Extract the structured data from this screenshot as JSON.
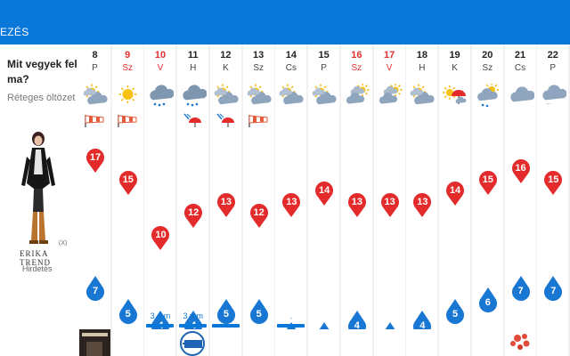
{
  "header": {
    "nav_label": "EZÉS",
    "color": "#0a78d8"
  },
  "sidebar": {
    "title": "Mit vegyek fel ma?",
    "subtitle": "Réteges öltözet",
    "ad_brand": "ERIKA TREND",
    "ad_close": "(X)",
    "ad_label": "Hirdetés"
  },
  "colors": {
    "max_pin": "#e32b2b",
    "min_drop": "#1877d2",
    "weekend_text": "#e03030"
  },
  "temp_scale": {
    "max": 17,
    "min": 3
  },
  "days": [
    {
      "day": "8",
      "dow": "P",
      "weekend": false,
      "icon": "partly-sunny-icon",
      "extra": "wind-sock-icon",
      "max": 17,
      "min": 7,
      "precip": "",
      "bar": false
    },
    {
      "day": "9",
      "dow": "Sz",
      "weekend": true,
      "icon": "sun-icon",
      "extra": "wind-sock-icon",
      "max": 15,
      "min": 5,
      "precip": "",
      "bar": false
    },
    {
      "day": "10",
      "dow": "V",
      "weekend": true,
      "icon": "rain-cloud-icon",
      "extra": "",
      "max": 10,
      "min": 4,
      "precip": "3 mm",
      "bar": true
    },
    {
      "day": "11",
      "dow": "H",
      "weekend": false,
      "icon": "rain-cloud-icon",
      "extra": "umbrella-wind-icon",
      "max": 12,
      "min": 4,
      "precip": "3 mm",
      "bar": true
    },
    {
      "day": "12",
      "dow": "K",
      "weekend": false,
      "icon": "partly-sunny-icon",
      "extra": "umbrella-wind-icon",
      "max": 13,
      "min": 5,
      "precip": ".",
      "bar": true
    },
    {
      "day": "13",
      "dow": "Sz",
      "weekend": false,
      "icon": "partly-sunny-icon",
      "extra": "wind-sock-icon",
      "max": 12,
      "min": 5,
      "precip": "",
      "bar": false
    },
    {
      "day": "14",
      "dow": "Cs",
      "weekend": false,
      "icon": "partly-sunny-icon",
      "extra": "",
      "max": 13,
      "min": 3,
      "precip": ".",
      "bar": true
    },
    {
      "day": "15",
      "dow": "P",
      "weekend": false,
      "icon": "partly-sunny-icon",
      "extra": "",
      "max": 14,
      "min": 3,
      "precip": "",
      "bar": false
    },
    {
      "day": "16",
      "dow": "Sz",
      "weekend": true,
      "icon": "clouds-sun-icon",
      "extra": "",
      "max": 13,
      "min": 4,
      "precip": "",
      "bar": false
    },
    {
      "day": "17",
      "dow": "V",
      "weekend": true,
      "icon": "clouds-sun-icon",
      "extra": "",
      "max": 13,
      "min": 3,
      "precip": "",
      "bar": false
    },
    {
      "day": "18",
      "dow": "H",
      "weekend": false,
      "icon": "partly-sunny-icon",
      "extra": "",
      "max": 13,
      "min": 4,
      "precip": "",
      "bar": false
    },
    {
      "day": "19",
      "dow": "K",
      "weekend": false,
      "icon": "umbrella-icon",
      "extra": "",
      "max": 14,
      "min": 5,
      "precip": "",
      "bar": false
    },
    {
      "day": "20",
      "dow": "Sz",
      "weekend": false,
      "icon": "sun-rain-icon",
      "extra": "",
      "max": 15,
      "min": 6,
      "precip": "",
      "bar": false
    },
    {
      "day": "21",
      "dow": "Cs",
      "weekend": false,
      "icon": "cloud-icon",
      "extra": "",
      "max": 16,
      "min": 7,
      "precip": "",
      "bar": false
    },
    {
      "day": "22",
      "dow": "P",
      "weekend": false,
      "icon": "drizzle-cloud-icon",
      "extra": "",
      "max": 15,
      "min": 7,
      "precip": "",
      "bar": false
    }
  ],
  "bottom_strip": [
    {
      "index": 0,
      "icon": "album-thumbnail-icon"
    },
    {
      "index": 3,
      "icon": "channel-19-logo-icon"
    },
    {
      "index": 13,
      "icon": "flower-thumbnail-icon"
    }
  ]
}
